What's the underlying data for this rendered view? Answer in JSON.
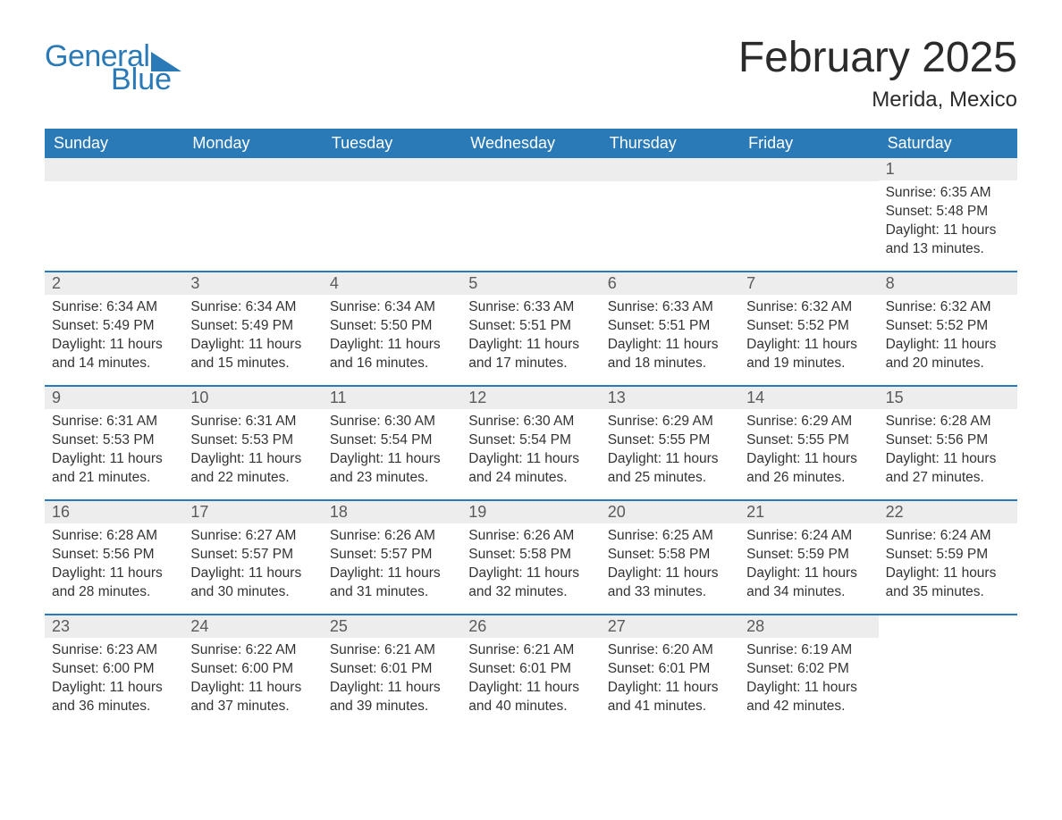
{
  "brand": {
    "word1": "General",
    "word2": "Blue",
    "accent_color": "#2a7ab7"
  },
  "title": "February 2025",
  "location": "Merida, Mexico",
  "colors": {
    "header_bg": "#2a7ab7",
    "header_text": "#ffffff",
    "day_bar_bg": "#ededed",
    "week_divider": "#2a7ab7",
    "body_text": "#333333",
    "page_bg": "#ffffff"
  },
  "typography": {
    "title_fontsize": 48,
    "location_fontsize": 24,
    "weekday_fontsize": 18,
    "daynum_fontsize": 18,
    "body_fontsize": 15.5
  },
  "layout": {
    "columns": 7,
    "first_day_column_index": 6
  },
  "weekdays": [
    "Sunday",
    "Monday",
    "Tuesday",
    "Wednesday",
    "Thursday",
    "Friday",
    "Saturday"
  ],
  "labels": {
    "sunrise": "Sunrise:",
    "sunset": "Sunset:",
    "daylight": "Daylight:"
  },
  "days": [
    {
      "n": 1,
      "sunrise": "6:35 AM",
      "sunset": "5:48 PM",
      "daylight": "11 hours and 13 minutes."
    },
    {
      "n": 2,
      "sunrise": "6:34 AM",
      "sunset": "5:49 PM",
      "daylight": "11 hours and 14 minutes."
    },
    {
      "n": 3,
      "sunrise": "6:34 AM",
      "sunset": "5:49 PM",
      "daylight": "11 hours and 15 minutes."
    },
    {
      "n": 4,
      "sunrise": "6:34 AM",
      "sunset": "5:50 PM",
      "daylight": "11 hours and 16 minutes."
    },
    {
      "n": 5,
      "sunrise": "6:33 AM",
      "sunset": "5:51 PM",
      "daylight": "11 hours and 17 minutes."
    },
    {
      "n": 6,
      "sunrise": "6:33 AM",
      "sunset": "5:51 PM",
      "daylight": "11 hours and 18 minutes."
    },
    {
      "n": 7,
      "sunrise": "6:32 AM",
      "sunset": "5:52 PM",
      "daylight": "11 hours and 19 minutes."
    },
    {
      "n": 8,
      "sunrise": "6:32 AM",
      "sunset": "5:52 PM",
      "daylight": "11 hours and 20 minutes."
    },
    {
      "n": 9,
      "sunrise": "6:31 AM",
      "sunset": "5:53 PM",
      "daylight": "11 hours and 21 minutes."
    },
    {
      "n": 10,
      "sunrise": "6:31 AM",
      "sunset": "5:53 PM",
      "daylight": "11 hours and 22 minutes."
    },
    {
      "n": 11,
      "sunrise": "6:30 AM",
      "sunset": "5:54 PM",
      "daylight": "11 hours and 23 minutes."
    },
    {
      "n": 12,
      "sunrise": "6:30 AM",
      "sunset": "5:54 PM",
      "daylight": "11 hours and 24 minutes."
    },
    {
      "n": 13,
      "sunrise": "6:29 AM",
      "sunset": "5:55 PM",
      "daylight": "11 hours and 25 minutes."
    },
    {
      "n": 14,
      "sunrise": "6:29 AM",
      "sunset": "5:55 PM",
      "daylight": "11 hours and 26 minutes."
    },
    {
      "n": 15,
      "sunrise": "6:28 AM",
      "sunset": "5:56 PM",
      "daylight": "11 hours and 27 minutes."
    },
    {
      "n": 16,
      "sunrise": "6:28 AM",
      "sunset": "5:56 PM",
      "daylight": "11 hours and 28 minutes."
    },
    {
      "n": 17,
      "sunrise": "6:27 AM",
      "sunset": "5:57 PM",
      "daylight": "11 hours and 30 minutes."
    },
    {
      "n": 18,
      "sunrise": "6:26 AM",
      "sunset": "5:57 PM",
      "daylight": "11 hours and 31 minutes."
    },
    {
      "n": 19,
      "sunrise": "6:26 AM",
      "sunset": "5:58 PM",
      "daylight": "11 hours and 32 minutes."
    },
    {
      "n": 20,
      "sunrise": "6:25 AM",
      "sunset": "5:58 PM",
      "daylight": "11 hours and 33 minutes."
    },
    {
      "n": 21,
      "sunrise": "6:24 AM",
      "sunset": "5:59 PM",
      "daylight": "11 hours and 34 minutes."
    },
    {
      "n": 22,
      "sunrise": "6:24 AM",
      "sunset": "5:59 PM",
      "daylight": "11 hours and 35 minutes."
    },
    {
      "n": 23,
      "sunrise": "6:23 AM",
      "sunset": "6:00 PM",
      "daylight": "11 hours and 36 minutes."
    },
    {
      "n": 24,
      "sunrise": "6:22 AM",
      "sunset": "6:00 PM",
      "daylight": "11 hours and 37 minutes."
    },
    {
      "n": 25,
      "sunrise": "6:21 AM",
      "sunset": "6:01 PM",
      "daylight": "11 hours and 39 minutes."
    },
    {
      "n": 26,
      "sunrise": "6:21 AM",
      "sunset": "6:01 PM",
      "daylight": "11 hours and 40 minutes."
    },
    {
      "n": 27,
      "sunrise": "6:20 AM",
      "sunset": "6:01 PM",
      "daylight": "11 hours and 41 minutes."
    },
    {
      "n": 28,
      "sunrise": "6:19 AM",
      "sunset": "6:02 PM",
      "daylight": "11 hours and 42 minutes."
    }
  ]
}
